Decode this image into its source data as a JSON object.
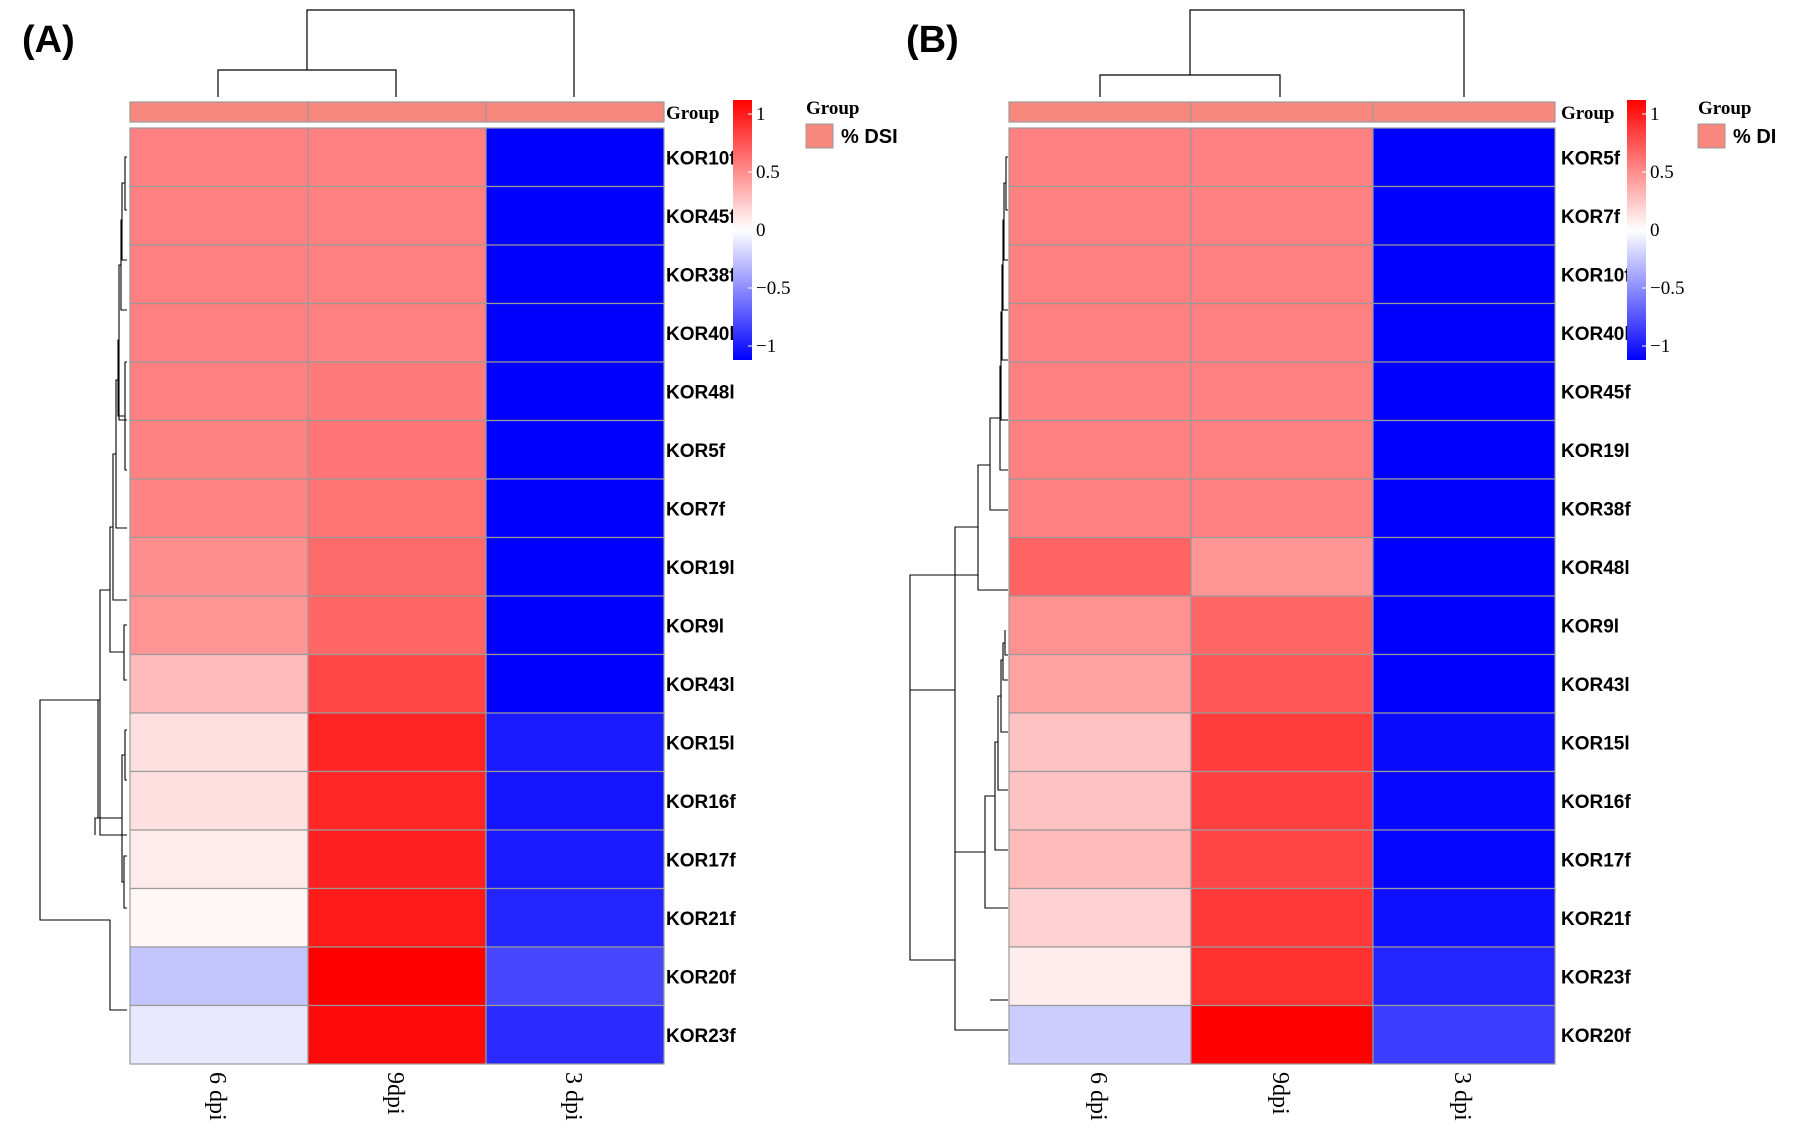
{
  "chart_data": [
    {
      "type": "heatmap",
      "panel_label": "(A)",
      "columns": [
        "6 dpi",
        "9dpi",
        "3 dpi"
      ],
      "rows": [
        "KOR10f",
        "KOR45f",
        "KOR38f",
        "KOR40l",
        "KOR48l",
        "KOR5f",
        "KOR7f",
        "KOR19l",
        "KOR9l",
        "KOR43l",
        "KOR15l",
        "KOR16f",
        "KOR17f",
        "KOR21f",
        "KOR20f",
        "KOR23f"
      ],
      "values": [
        [
          0.5,
          0.5,
          -1.0
        ],
        [
          0.5,
          0.5,
          -1.0
        ],
        [
          0.5,
          0.5,
          -1.0
        ],
        [
          0.5,
          0.5,
          -1.0
        ],
        [
          0.5,
          0.52,
          -1.0
        ],
        [
          0.49,
          0.54,
          -1.0
        ],
        [
          0.48,
          0.55,
          -1.0
        ],
        [
          0.44,
          0.58,
          -1.0
        ],
        [
          0.42,
          0.6,
          -1.0
        ],
        [
          0.27,
          0.72,
          -1.0
        ],
        [
          0.12,
          0.86,
          -0.9
        ],
        [
          0.12,
          0.85,
          -0.92
        ],
        [
          0.08,
          0.87,
          -0.9
        ],
        [
          0.03,
          0.9,
          -0.86
        ],
        [
          -0.23,
          1.0,
          -0.72
        ],
        [
          -0.09,
          0.96,
          -0.83
        ]
      ],
      "annotation": {
        "title": "Group",
        "entries": [
          "% DSI"
        ],
        "color": "#F8877E",
        "row_label": "Group"
      },
      "colorbar": {
        "min": -1,
        "max": 1,
        "ticks": [
          1,
          0.5,
          0,
          -0.5,
          -1
        ],
        "tick_labels": [
          "1",
          "0.5",
          "0",
          "−0.5",
          "−1"
        ]
      },
      "colors": {
        "low": "#0000FF",
        "mid": "#FFFFFF",
        "high": "#FF0000"
      }
    },
    {
      "type": "heatmap",
      "panel_label": "(B)",
      "columns": [
        "6 dpi",
        "9dpi",
        "3 dpi"
      ],
      "rows": [
        "KOR5f",
        "KOR7f",
        "KOR10f",
        "KOR40l",
        "KOR45f",
        "KOR19l",
        "KOR38f",
        "KOR48l",
        "KOR9l",
        "KOR43l",
        "KOR15l",
        "KOR16f",
        "KOR17f",
        "KOR21f",
        "KOR23f",
        "KOR20f"
      ],
      "values": [
        [
          0.5,
          0.5,
          -1.0
        ],
        [
          0.5,
          0.5,
          -1.0
        ],
        [
          0.5,
          0.5,
          -1.0
        ],
        [
          0.5,
          0.5,
          -1.0
        ],
        [
          0.5,
          0.5,
          -1.0
        ],
        [
          0.5,
          0.5,
          -1.0
        ],
        [
          0.5,
          0.5,
          -1.0
        ],
        [
          0.61,
          0.41,
          -1.0
        ],
        [
          0.43,
          0.6,
          -1.0
        ],
        [
          0.36,
          0.66,
          -1.0
        ],
        [
          0.24,
          0.76,
          -0.96
        ],
        [
          0.24,
          0.75,
          -0.97
        ],
        [
          0.27,
          0.73,
          -0.98
        ],
        [
          0.18,
          0.78,
          -0.94
        ],
        [
          0.07,
          0.81,
          -0.86
        ],
        [
          -0.2,
          1.0,
          -0.76
        ]
      ],
      "annotation": {
        "title": "Group",
        "entries": [
          "% DI"
        ],
        "color": "#F8877E",
        "row_label": "Group"
      },
      "colorbar": {
        "min": -1,
        "max": 1,
        "ticks": [
          1,
          0.5,
          0,
          -0.5,
          -1
        ],
        "tick_labels": [
          "1",
          "0.5",
          "0",
          "−0.5",
          "−1"
        ]
      },
      "colors": {
        "low": "#0000FF",
        "mid": "#FFFFFF",
        "high": "#FF0000"
      }
    }
  ]
}
